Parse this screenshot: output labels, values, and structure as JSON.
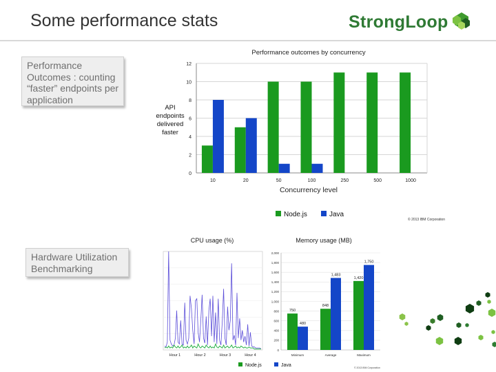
{
  "slide": {
    "title": "Some performance stats",
    "logo_text": "StrongLoop",
    "callouts": [
      "Performance Outcomes : counting “faster” endpoints per application",
      "Hardware Utilization Benchmarking"
    ]
  },
  "colors": {
    "node": "#1a9a1f",
    "java": "#1446c8",
    "title": "#333333",
    "logo": "#2f7a34"
  },
  "chart_data": [
    {
      "type": "bar",
      "title": "Performance outcomes by concurrency",
      "xlabel": "Concurrency level",
      "ylabel": "API endpoints delivered faster",
      "categories": [
        "10",
        "20",
        "50",
        "100",
        "250",
        "500",
        "1000"
      ],
      "series": [
        {
          "name": "Node.js",
          "values": [
            3,
            5,
            10,
            10,
            11,
            11,
            11
          ]
        },
        {
          "name": "Java",
          "values": [
            8,
            6,
            1,
            1,
            0,
            0,
            0
          ]
        }
      ],
      "ylim": [
        0,
        12
      ],
      "yticks": [
        0,
        2,
        4,
        6,
        8,
        10,
        12
      ],
      "grid": true,
      "legend": "bottom",
      "note": "© 2013 IBM Corporation"
    },
    {
      "type": "line",
      "title": "CPU usage (%)",
      "xticks": [
        "Hour 1",
        "Hour 2",
        "Hour 3",
        "Hour 4"
      ],
      "series": [
        {
          "name": "Java",
          "values": [
            4,
            3,
            8,
            100,
            10,
            6,
            4,
            5,
            12,
            40,
            8,
            6,
            30,
            6,
            5,
            48,
            10,
            6,
            12,
            55,
            42,
            20,
            6,
            50,
            52,
            18,
            8,
            30,
            56,
            12,
            7,
            34,
            5,
            40,
            52,
            14,
            55,
            8,
            38,
            6,
            52,
            10,
            5,
            28,
            62,
            12,
            5,
            44,
            20,
            30,
            88,
            10,
            15,
            5,
            58,
            12,
            32,
            10,
            20,
            8,
            14,
            5,
            26,
            4,
            18,
            4,
            3,
            3,
            2,
            2,
            2,
            2,
            1
          ]
        },
        {
          "name": "Node.js",
          "values": [
            2,
            3,
            2,
            4,
            2,
            3,
            2,
            5,
            3,
            2,
            4,
            2,
            3,
            5,
            2,
            3,
            2,
            4,
            2,
            3,
            5,
            2,
            4,
            3,
            2,
            6,
            3,
            2,
            4,
            3,
            2,
            5,
            3,
            2,
            4,
            2,
            3,
            2,
            6,
            3,
            2,
            4,
            3,
            2,
            5,
            2,
            3,
            4,
            2,
            3,
            5,
            2,
            3,
            4,
            2,
            3,
            2,
            4,
            3,
            2,
            3,
            2,
            2,
            3,
            2,
            2,
            2,
            1,
            1,
            1,
            1,
            1,
            1
          ]
        }
      ],
      "legend": "bottom"
    },
    {
      "type": "bar",
      "title": "Memory usage (MB)",
      "categories": [
        "Minimum",
        "Average",
        "Maximum"
      ],
      "series": [
        {
          "name": "Node.js",
          "values": [
            750,
            848,
            1420
          ],
          "labels": [
            "750",
            "848",
            "1,420"
          ]
        },
        {
          "name": "Java",
          "values": [
            480,
            1483,
            1750
          ],
          "labels": [
            "480",
            "1,483",
            "1,750"
          ]
        }
      ],
      "ylim": [
        0,
        2000
      ],
      "yticks": [
        "0",
        "200",
        "400",
        "600",
        "800",
        "1,000",
        "1,200",
        "1,400",
        "1,600",
        "1,800",
        "2,000"
      ],
      "legend": "bottom",
      "note": "© 2013 IBM Corporation"
    }
  ]
}
